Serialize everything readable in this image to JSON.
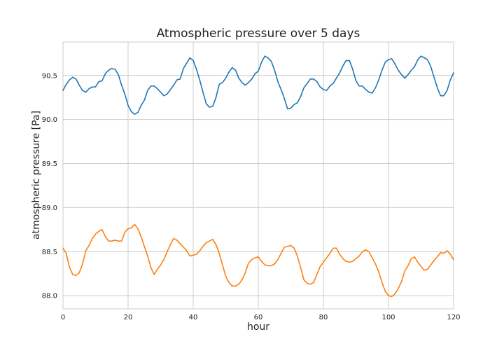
{
  "chart_data": {
    "type": "line",
    "title": "Atmospheric pressure over 5 days",
    "xlabel": "hour",
    "ylabel": "atmospheric pressure [Pa]",
    "xlim": [
      0,
      120
    ],
    "ylim": [
      87.85,
      90.88
    ],
    "xticks": [
      0,
      20,
      40,
      60,
      80,
      100,
      120
    ],
    "yticks": [
      88.0,
      88.5,
      89.0,
      89.5,
      90.0,
      90.5
    ],
    "grid": true,
    "legend": "none",
    "x": [
      0,
      1,
      2,
      3,
      4,
      5,
      6,
      7,
      8,
      9,
      10,
      11,
      12,
      13,
      14,
      15,
      16,
      17,
      18,
      19,
      20,
      21,
      22,
      23,
      24,
      25,
      26,
      27,
      28,
      29,
      30,
      31,
      32,
      33,
      34,
      35,
      36,
      37,
      38,
      39,
      40,
      41,
      42,
      43,
      44,
      45,
      46,
      47,
      48,
      49,
      50,
      51,
      52,
      53,
      54,
      55,
      56,
      57,
      58,
      59,
      60,
      61,
      62,
      63,
      64,
      65,
      66,
      67,
      68,
      69,
      70,
      71,
      72,
      73,
      74,
      75,
      76,
      77,
      78,
      79,
      80,
      81,
      82,
      83,
      84,
      85,
      86,
      87,
      88,
      89,
      90,
      91,
      92,
      93,
      94,
      95,
      96,
      97,
      98,
      99,
      100,
      101,
      102,
      103,
      104,
      105,
      106,
      107,
      108,
      109,
      110,
      111,
      112,
      113,
      114,
      115,
      116,
      117,
      118,
      119,
      120
    ],
    "series": [
      {
        "color": "#1f77b4",
        "values": [
          90.33,
          90.4,
          90.45,
          90.48,
          90.46,
          90.39,
          90.33,
          90.31,
          90.35,
          90.37,
          90.37,
          90.43,
          90.44,
          90.52,
          90.56,
          90.58,
          90.57,
          90.51,
          90.39,
          90.29,
          90.16,
          90.09,
          90.06,
          90.08,
          90.16,
          90.22,
          90.33,
          90.38,
          90.38,
          90.35,
          90.31,
          90.27,
          90.29,
          90.34,
          90.39,
          90.45,
          90.46,
          90.58,
          90.64,
          90.7,
          90.67,
          90.57,
          90.45,
          90.31,
          90.18,
          90.14,
          90.15,
          90.25,
          90.4,
          90.42,
          90.47,
          90.54,
          90.59,
          90.56,
          90.47,
          90.42,
          90.39,
          90.42,
          90.46,
          90.52,
          90.55,
          90.65,
          90.72,
          90.7,
          90.66,
          90.56,
          90.43,
          90.34,
          90.24,
          90.12,
          90.13,
          90.17,
          90.19,
          90.26,
          90.36,
          90.41,
          90.46,
          90.46,
          90.43,
          90.37,
          90.34,
          90.33,
          90.38,
          90.41,
          90.47,
          90.53,
          90.61,
          90.67,
          90.67,
          90.57,
          90.44,
          90.38,
          90.38,
          90.34,
          90.31,
          90.3,
          90.36,
          90.45,
          90.56,
          90.65,
          90.68,
          90.69,
          90.63,
          90.56,
          90.51,
          90.47,
          90.51,
          90.56,
          90.6,
          90.68,
          90.72,
          90.7,
          90.68,
          90.6,
          90.48,
          90.36,
          90.27,
          90.27,
          90.33,
          90.45,
          90.53
        ]
      },
      {
        "color": "#ff7f0e",
        "values": [
          88.54,
          88.48,
          88.32,
          88.24,
          88.23,
          88.26,
          88.36,
          88.51,
          88.57,
          88.65,
          88.7,
          88.73,
          88.75,
          88.67,
          88.62,
          88.62,
          88.63,
          88.62,
          88.62,
          88.72,
          88.76,
          88.77,
          88.81,
          88.76,
          88.67,
          88.56,
          88.45,
          88.32,
          88.24,
          88.3,
          88.35,
          88.41,
          88.5,
          88.58,
          88.65,
          88.63,
          88.59,
          88.55,
          88.51,
          88.45,
          88.46,
          88.47,
          88.51,
          88.56,
          88.6,
          88.62,
          88.64,
          88.58,
          88.48,
          88.35,
          88.22,
          88.15,
          88.11,
          88.11,
          88.13,
          88.18,
          88.26,
          88.37,
          88.41,
          88.43,
          88.44,
          88.39,
          88.35,
          88.34,
          88.34,
          88.36,
          88.41,
          88.48,
          88.55,
          88.56,
          88.57,
          88.54,
          88.45,
          88.32,
          88.18,
          88.14,
          88.13,
          88.15,
          88.24,
          88.33,
          88.38,
          88.43,
          88.48,
          88.54,
          88.54,
          88.47,
          88.42,
          88.39,
          88.38,
          88.39,
          88.42,
          88.45,
          88.5,
          88.52,
          88.5,
          88.43,
          88.36,
          88.27,
          88.15,
          88.05,
          88.0,
          87.99,
          88.02,
          88.08,
          88.16,
          88.28,
          88.34,
          88.42,
          88.44,
          88.38,
          88.33,
          88.29,
          88.3,
          88.35,
          88.4,
          88.44,
          88.49,
          88.48,
          88.51,
          88.47,
          88.41
        ]
      }
    ]
  }
}
